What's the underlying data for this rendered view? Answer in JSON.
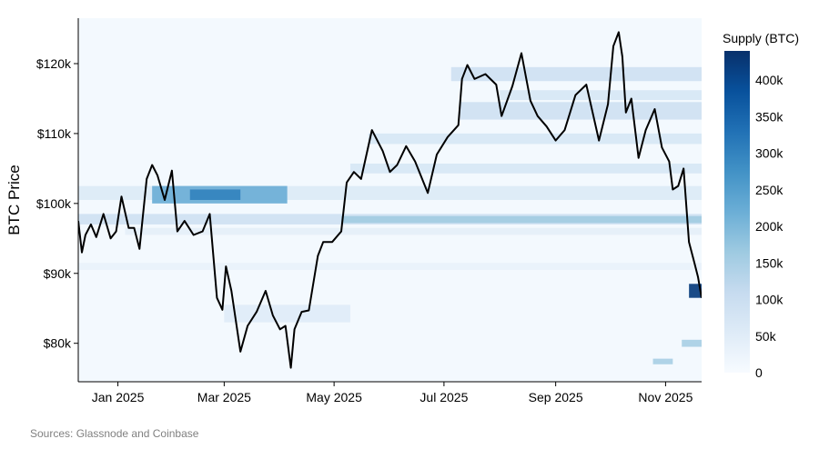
{
  "chart_data": {
    "type": "heatmap",
    "ylabel": "BTC Price",
    "ylim": [
      74500,
      126500
    ],
    "xlim": [
      "2024-12-10",
      "2025-11-21"
    ],
    "y_ticks": [
      {
        "value": 80000,
        "label": "$80k"
      },
      {
        "value": 90000,
        "label": "$90k"
      },
      {
        "value": 100000,
        "label": "$100k"
      },
      {
        "value": 110000,
        "label": "$110k"
      },
      {
        "value": 120000,
        "label": "$120k"
      }
    ],
    "x_ticks": [
      {
        "date": "2025-01-01",
        "label": "Jan 2025"
      },
      {
        "date": "2025-03-01",
        "label": "Mar 2025"
      },
      {
        "date": "2025-05-01",
        "label": "May 2025"
      },
      {
        "date": "2025-07-01",
        "label": "Jul 2025"
      },
      {
        "date": "2025-09-01",
        "label": "Sep 2025"
      },
      {
        "date": "2025-11-01",
        "label": "Nov 2025"
      }
    ],
    "colorbar": {
      "title": "Supply (BTC)",
      "min": 0,
      "max": 440000,
      "ticks": [
        {
          "value": 0,
          "label": "0"
        },
        {
          "value": 50000,
          "label": "50k"
        },
        {
          "value": 100000,
          "label": "100k"
        },
        {
          "value": 150000,
          "label": "150k"
        },
        {
          "value": 200000,
          "label": "200k"
        },
        {
          "value": 250000,
          "label": "250k"
        },
        {
          "value": 300000,
          "label": "300k"
        },
        {
          "value": 350000,
          "label": "350k"
        },
        {
          "value": 400000,
          "label": "400k"
        }
      ],
      "colors": [
        "#f7fbff",
        "#deebf7",
        "#c6dbef",
        "#9ecae1",
        "#6baed6",
        "#4292c6",
        "#2171b5",
        "#08519c",
        "#08306b"
      ]
    },
    "supply_bands": [
      {
        "start": "2024-12-10",
        "end": "2025-11-21",
        "y0": 100500,
        "y1": 102500,
        "supply": 60000
      },
      {
        "start": "2025-01-20",
        "end": "2025-04-05",
        "y0": 100000,
        "y1": 102500,
        "supply": 220000
      },
      {
        "start": "2025-02-10",
        "end": "2025-03-10",
        "y0": 100500,
        "y1": 102000,
        "supply": 300000
      },
      {
        "start": "2024-12-10",
        "end": "2025-11-21",
        "y0": 97000,
        "y1": 98500,
        "supply": 90000
      },
      {
        "start": "2025-05-05",
        "end": "2025-11-21",
        "y0": 97200,
        "y1": 98200,
        "supply": 160000
      },
      {
        "start": "2025-01-05",
        "end": "2025-11-21",
        "y0": 95500,
        "y1": 96500,
        "supply": 40000
      },
      {
        "start": "2025-05-10",
        "end": "2025-11-21",
        "y0": 104300,
        "y1": 105700,
        "supply": 70000
      },
      {
        "start": "2025-05-20",
        "end": "2025-11-21",
        "y0": 108500,
        "y1": 110000,
        "supply": 70000
      },
      {
        "start": "2025-07-05",
        "end": "2025-11-21",
        "y0": 117500,
        "y1": 119500,
        "supply": 90000
      },
      {
        "start": "2025-07-10",
        "end": "2025-11-21",
        "y0": 112000,
        "y1": 114500,
        "supply": 90000
      },
      {
        "start": "2025-08-01",
        "end": "2025-11-21",
        "y0": 114800,
        "y1": 116200,
        "supply": 70000
      },
      {
        "start": "2025-03-01",
        "end": "2025-05-10",
        "y0": 83000,
        "y1": 85500,
        "supply": 50000
      },
      {
        "start": "2024-12-10",
        "end": "2025-11-21",
        "y0": 90500,
        "y1": 91500,
        "supply": 30000
      },
      {
        "start": "2025-11-14",
        "end": "2025-11-21",
        "y0": 86500,
        "y1": 88500,
        "supply": 420000
      },
      {
        "start": "2025-11-10",
        "end": "2025-11-21",
        "y0": 79500,
        "y1": 80500,
        "supply": 150000
      },
      {
        "start": "2025-10-25",
        "end": "2025-11-05",
        "y0": 77000,
        "y1": 77800,
        "supply": 150000
      }
    ],
    "price_series": {
      "x": [
        "2024-12-10",
        "2024-12-12",
        "2024-12-14",
        "2024-12-17",
        "2024-12-20",
        "2024-12-24",
        "2024-12-28",
        "2024-12-31",
        "2025-01-03",
        "2025-01-07",
        "2025-01-10",
        "2025-01-13",
        "2025-01-17",
        "2025-01-20",
        "2025-01-23",
        "2025-01-27",
        "2025-01-31",
        "2025-02-03",
        "2025-02-07",
        "2025-02-12",
        "2025-02-17",
        "2025-02-21",
        "2025-02-25",
        "2025-02-28",
        "2025-03-02",
        "2025-03-05",
        "2025-03-10",
        "2025-03-14",
        "2025-03-19",
        "2025-03-24",
        "2025-03-28",
        "2025-04-01",
        "2025-04-04",
        "2025-04-07",
        "2025-04-09",
        "2025-04-13",
        "2025-04-17",
        "2025-04-22",
        "2025-04-25",
        "2025-04-30",
        "2025-05-05",
        "2025-05-08",
        "2025-05-12",
        "2025-05-16",
        "2025-05-22",
        "2025-05-28",
        "2025-06-01",
        "2025-06-05",
        "2025-06-10",
        "2025-06-15",
        "2025-06-22",
        "2025-06-27",
        "2025-07-03",
        "2025-07-09",
        "2025-07-11",
        "2025-07-14",
        "2025-07-18",
        "2025-07-24",
        "2025-07-30",
        "2025-08-02",
        "2025-08-08",
        "2025-08-13",
        "2025-08-18",
        "2025-08-22",
        "2025-08-27",
        "2025-09-01",
        "2025-09-06",
        "2025-09-12",
        "2025-09-18",
        "2025-09-25",
        "2025-09-30",
        "2025-10-03",
        "2025-10-06",
        "2025-10-08",
        "2025-10-10",
        "2025-10-13",
        "2025-10-17",
        "2025-10-21",
        "2025-10-26",
        "2025-10-30",
        "2025-11-03",
        "2025-11-05",
        "2025-11-08",
        "2025-11-11",
        "2025-11-14",
        "2025-11-17",
        "2025-11-19",
        "2025-11-21"
      ],
      "y": [
        97500,
        93000,
        95500,
        97000,
        95200,
        98500,
        95000,
        96000,
        101000,
        96500,
        96500,
        93500,
        103500,
        105500,
        104000,
        100500,
        104700,
        96000,
        97500,
        95500,
        96000,
        98500,
        86500,
        84800,
        91000,
        87500,
        78800,
        82500,
        84500,
        87500,
        84000,
        82000,
        82500,
        76500,
        82000,
        84500,
        84700,
        92500,
        94500,
        94500,
        96000,
        103000,
        104500,
        103500,
        110500,
        107500,
        104500,
        105500,
        108200,
        106000,
        101500,
        107000,
        109500,
        111200,
        117800,
        119800,
        117800,
        118500,
        117000,
        112500,
        116800,
        121500,
        114700,
        112500,
        111000,
        109000,
        110500,
        115500,
        117000,
        109000,
        114200,
        122500,
        124500,
        121000,
        113000,
        115000,
        106500,
        110500,
        113500,
        108000,
        106000,
        102000,
        102500,
        105000,
        94500,
        91500,
        89500,
        86500
      ]
    }
  },
  "footer": {
    "source": "Sources: Glassnode and Coinbase"
  }
}
